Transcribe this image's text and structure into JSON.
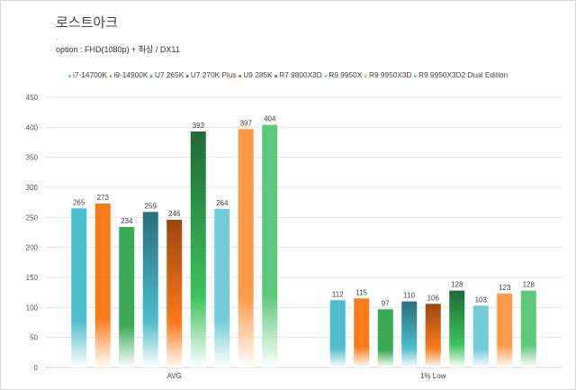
{
  "title": "로스트아크",
  "dot": "-",
  "subtitle": "option :  FHD(1080p) + 최상 / DX11",
  "chart_data": {
    "type": "bar",
    "title": "로스트아크",
    "subtitle": "option :  FHD(1080p) + 최상 / DX11",
    "categories": [
      "AVG",
      "1% Low"
    ],
    "series": [
      {
        "name": "i7-14700K",
        "color": "#4bbdcc",
        "values": [
          265,
          112
        ]
      },
      {
        "name": "i9-14900K",
        "color": "#ff7a1a",
        "values": [
          273,
          115
        ]
      },
      {
        "name": "U7 265K",
        "color": "#3aaa55",
        "values": [
          234,
          97
        ]
      },
      {
        "name": "U7 270K Plus",
        "color": "#2a6f7c",
        "bottom": "#4bbdcc",
        "values": [
          259,
          110
        ]
      },
      {
        "name": "U9 285K",
        "color": "#9a4610",
        "bottom": "#ff7a1a",
        "values": [
          246,
          106
        ]
      },
      {
        "name": "R7 9800X3D",
        "color": "#1f6a35",
        "bottom": "#3cc35c",
        "values": [
          393,
          128
        ]
      },
      {
        "name": "R9 9950X",
        "color": "#72cdd8",
        "values": [
          264,
          103
        ]
      },
      {
        "name": "R9 9950X3D",
        "color": "#ff9a4a",
        "values": [
          397,
          123
        ]
      },
      {
        "name": "R9 9950X3D2 Dual Edition",
        "color": "#5cc878",
        "values": [
          404,
          128
        ]
      }
    ],
    "xlabel": "",
    "ylabel": "",
    "ylim": [
      0,
      450
    ],
    "yticks": [
      "0",
      "50",
      "100",
      "150",
      "200",
      "250",
      "300",
      "350",
      "400",
      "450"
    ],
    "grid": true,
    "legend": "top"
  }
}
